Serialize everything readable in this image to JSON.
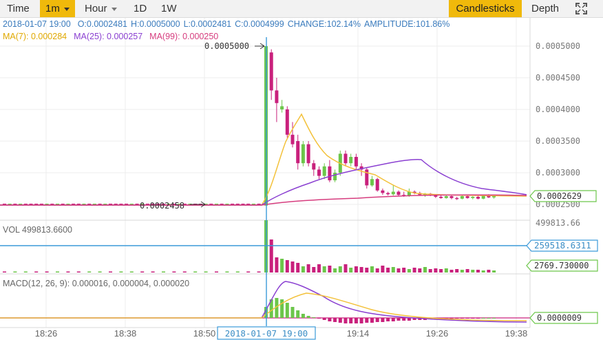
{
  "toolbar": {
    "time_label": "Time",
    "interval_selected": "1m",
    "hour_label": "Hour",
    "day_label": "1D",
    "week_label": "1W",
    "candles_label": "Candlesticks",
    "depth_label": "Depth",
    "fullscreen_icon": "expand-icon"
  },
  "info": {
    "datetime": "2018-01-07 19:00",
    "open": "O:0.0002481",
    "high": "H:0.0005000",
    "low": "L:0.0002481",
    "close": "C:0.0004999",
    "change": "CHANGE:102.14%",
    "amplitude": "AMPLITUDE:101.86%"
  },
  "ma": {
    "ma7": "MA(7): 0.000284",
    "ma25": "MA(25): 0.000257",
    "ma99": "MA(99): 0.000250"
  },
  "price_axis": [
    "0.0005000",
    "0.0004500",
    "0.0004000",
    "0.0003500",
    "0.0003000",
    "0.0002500"
  ],
  "markers": {
    "high": "0.0005000",
    "low": "0.0002458",
    "last_price": "0.0002629"
  },
  "volume": {
    "label": "VOL 499813.6600",
    "axis_max": "499813.66",
    "crosshair_value": "259518.6311",
    "current_value": "2769.730000"
  },
  "macd": {
    "label": "MACD(12, 26, 9): 0.000016, 0.000004, 0.000020",
    "current_value": "0.0000009"
  },
  "time_axis": [
    "18:26",
    "18:38",
    "18:50",
    "19:14",
    "19:26",
    "19:38"
  ],
  "crosshair_time": "2018-01-07 19:00",
  "colors": {
    "up": "#6cc64a",
    "down": "#c9207c",
    "ma7": "#f3c13a",
    "ma25": "#8a3fd1",
    "ma99": "#d63c7e",
    "crosshair": "#3a9ad9",
    "accent": "#f0b90b"
  },
  "chart_data": {
    "type": "candlestick",
    "interval": "1m",
    "price_axis_range": [
      0.00025,
      0.0005
    ],
    "candles_after_spike": [
      {
        "o": 0.0002481,
        "h": 0.0005,
        "l": 0.0002481,
        "c": 0.0004999
      },
      {
        "o": 0.00049,
        "h": 0.000495,
        "l": 0.000415,
        "c": 0.00043
      },
      {
        "o": 0.00043,
        "h": 0.00045,
        "l": 0.00038,
        "c": 0.00041
      },
      {
        "o": 0.0004,
        "h": 0.000415,
        "l": 0.000395,
        "c": 0.000405
      },
      {
        "o": 0.0004,
        "h": 0.000405,
        "l": 0.000355,
        "c": 0.00036
      },
      {
        "o": 0.00036,
        "h": 0.00038,
        "l": 0.00034,
        "c": 0.000345
      },
      {
        "o": 0.00035,
        "h": 0.00036,
        "l": 0.000305,
        "c": 0.000315
      },
      {
        "o": 0.000315,
        "h": 0.00035,
        "l": 0.00031,
        "c": 0.000345
      },
      {
        "o": 0.000345,
        "h": 0.00035,
        "l": 0.00031,
        "c": 0.000315
      },
      {
        "o": 0.000315,
        "h": 0.00032,
        "l": 0.000295,
        "c": 0.000305
      },
      {
        "o": 0.000305,
        "h": 0.00031,
        "l": 0.00029,
        "c": 0.000295
      },
      {
        "o": 0.000295,
        "h": 0.000315,
        "l": 0.00029,
        "c": 0.00031
      },
      {
        "o": 0.00031,
        "h": 0.00032,
        "l": 0.000285,
        "c": 0.000288
      },
      {
        "o": 0.000288,
        "h": 0.000305,
        "l": 0.000285,
        "c": 0.0003
      },
      {
        "o": 0.0003,
        "h": 0.000335,
        "l": 0.000295,
        "c": 0.00033
      },
      {
        "o": 0.00033,
        "h": 0.000335,
        "l": 0.00031,
        "c": 0.000315
      },
      {
        "o": 0.000315,
        "h": 0.00033,
        "l": 0.00031,
        "c": 0.000325
      },
      {
        "o": 0.000325,
        "h": 0.00033,
        "l": 0.000305,
        "c": 0.00031
      },
      {
        "o": 0.00031,
        "h": 0.000315,
        "l": 0.000295,
        "c": 0.000305
      },
      {
        "o": 0.000305,
        "h": 0.000308,
        "l": 0.000275,
        "c": 0.00028
      },
      {
        "o": 0.00028,
        "h": 0.000295,
        "l": 0.000278,
        "c": 0.00029
      },
      {
        "o": 0.00029,
        "h": 0.000292,
        "l": 0.00027,
        "c": 0.000272
      },
      {
        "o": 0.000272,
        "h": 0.000275,
        "l": 0.000265,
        "c": 0.000268
      },
      {
        "o": 0.000268,
        "h": 0.00027,
        "l": 0.000264,
        "c": 0.000266
      },
      {
        "o": 0.000266,
        "h": 0.00028,
        "l": 0.000264,
        "c": 0.00027
      },
      {
        "o": 0.00027,
        "h": 0.000272,
        "l": 0.000263,
        "c": 0.000265
      },
      {
        "o": 0.000265,
        "h": 0.00027,
        "l": 0.000262,
        "c": 0.000263
      },
      {
        "o": 0.000263,
        "h": 0.000275,
        "l": 0.000262,
        "c": 0.00027
      },
      {
        "o": 0.00027,
        "h": 0.000272,
        "l": 0.000266,
        "c": 0.000268
      },
      {
        "o": 0.000268,
        "h": 0.00027,
        "l": 0.000264,
        "c": 0.000265
      },
      {
        "o": 0.000265,
        "h": 0.000268,
        "l": 0.000262,
        "c": 0.000267
      },
      {
        "o": 0.000267,
        "h": 0.000268,
        "l": 0.000263,
        "c": 0.000264
      },
      {
        "o": 0.000264,
        "h": 0.000266,
        "l": 0.00026,
        "c": 0.000262
      },
      {
        "o": 0.000262,
        "h": 0.000264,
        "l": 0.000259,
        "c": 0.00026
      },
      {
        "o": 0.00026,
        "h": 0.000265,
        "l": 0.000259,
        "c": 0.000263
      },
      {
        "o": 0.000263,
        "h": 0.000264,
        "l": 0.000258,
        "c": 0.00026
      },
      {
        "o": 0.00026,
        "h": 0.000262,
        "l": 0.000257,
        "c": 0.000259
      },
      {
        "o": 0.000259,
        "h": 0.000264,
        "l": 0.000258,
        "c": 0.000263
      },
      {
        "o": 0.000263,
        "h": 0.000265,
        "l": 0.000259,
        "c": 0.00026
      },
      {
        "o": 0.00026,
        "h": 0.000263,
        "l": 0.000258,
        "c": 0.000262
      },
      {
        "o": 0.000262,
        "h": 0.000264,
        "l": 0.000258,
        "c": 0.000259
      },
      {
        "o": 0.000259,
        "h": 0.000265,
        "l": 0.000258,
        "c": 0.000264
      },
      {
        "o": 0.000264,
        "h": 0.000266,
        "l": 0.00026,
        "c": 0.000261
      },
      {
        "o": 0.000261,
        "h": 0.000265,
        "l": 0.000259,
        "c": 0.000263
      }
    ]
  }
}
